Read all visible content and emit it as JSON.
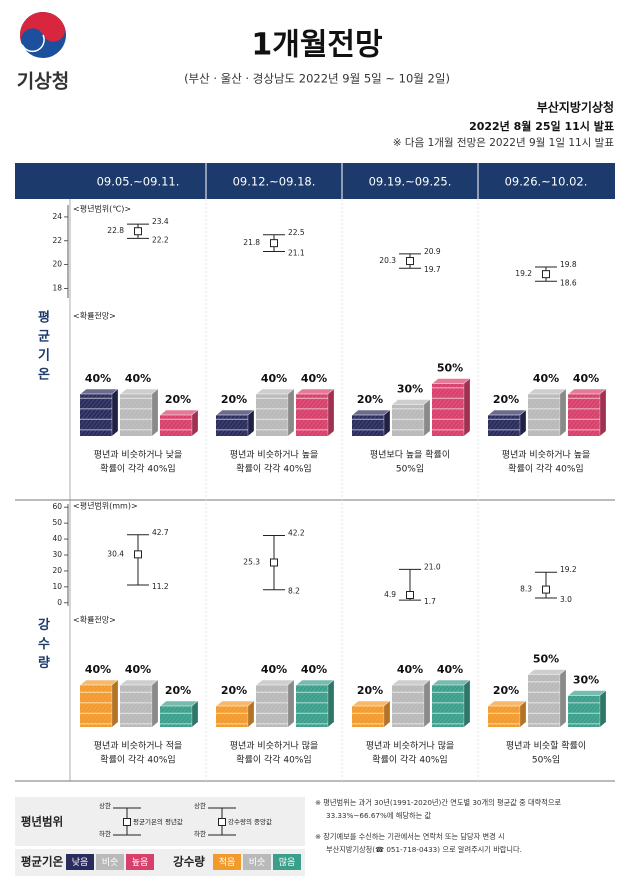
{
  "header": {
    "logo_text": "기상청",
    "title": "1개월전망",
    "subtitle": "(부산 · 울산 · 경상남도 2022년 9월 5일 ~ 10월 2일)",
    "office": "부산지방기상청",
    "issued": "2022년 8월 25일 11시 발표",
    "next": "※ 다음 1개월 전망은 2022년 9월 1일 11시 발표"
  },
  "periods": [
    "09.05.~09.11.",
    "09.12.~09.18.",
    "09.19.~09.25.",
    "09.26.~10.02."
  ],
  "chart_data": [
    {
      "type": "range",
      "name": "평균기온",
      "range_title": "<평년범위(℃)>",
      "prob_title": "<확률전망>",
      "ylim": [
        17.2,
        25
      ],
      "yticks": [
        18,
        20,
        22,
        24
      ],
      "colors": [
        "#2a2c5e",
        "#b9b9b9",
        "#d8406c"
      ],
      "weeks": [
        {
          "mean": 22.8,
          "upper": 23.4,
          "lower": 22.2,
          "probabilities": [
            40,
            40,
            20
          ],
          "probability_labels": [
            "40%",
            "40%",
            "20%"
          ],
          "text": [
            "평년과 비슷하거나 낮을",
            "확률이 각각 40%임"
          ]
        },
        {
          "mean": 21.8,
          "upper": 22.5,
          "lower": 21.1,
          "probabilities": [
            20,
            40,
            40
          ],
          "probability_labels": [
            "20%",
            "40%",
            "40%"
          ],
          "text": [
            "평년과 비슷하거나 높을",
            "확률이 각각 40%임"
          ]
        },
        {
          "mean": 20.3,
          "upper": 20.9,
          "lower": 19.7,
          "probabilities": [
            20,
            30,
            50
          ],
          "probability_labels": [
            "20%",
            "30%",
            "50%"
          ],
          "text": [
            "평년보다 높을 확률이",
            "50%임"
          ]
        },
        {
          "mean": 19.2,
          "upper": 19.8,
          "lower": 18.6,
          "probabilities": [
            20,
            40,
            40
          ],
          "probability_labels": [
            "20%",
            "40%",
            "40%"
          ],
          "text": [
            "평년과 비슷하거나 높을",
            "확률이 각각 40%임"
          ]
        }
      ]
    },
    {
      "type": "range",
      "name": "강수량",
      "range_title": "<평년범위(mm)>",
      "prob_title": "<확률전망>",
      "ylim": [
        -2,
        62
      ],
      "yticks": [
        0,
        10,
        20,
        30,
        40,
        50,
        60
      ],
      "colors": [
        "#f39a2c",
        "#b9b9b9",
        "#3a9f8b"
      ],
      "weeks": [
        {
          "mean": 30.4,
          "upper": 42.7,
          "lower": 11.2,
          "probabilities": [
            40,
            40,
            20
          ],
          "probability_labels": [
            "40%",
            "40%",
            "20%"
          ],
          "text": [
            "평년과 비슷하거나 적을",
            "확률이 각각 40%임"
          ]
        },
        {
          "mean": 25.3,
          "upper": 42.2,
          "lower": 8.2,
          "probabilities": [
            20,
            40,
            40
          ],
          "probability_labels": [
            "20%",
            "40%",
            "40%"
          ],
          "text": [
            "평년과 비슷하거나 많을",
            "확률이 각각 40%임"
          ]
        },
        {
          "mean": 4.9,
          "upper": 21.0,
          "upper_label": "21.0",
          "lower": 1.7,
          "probabilities": [
            20,
            40,
            40
          ],
          "probability_labels": [
            "20%",
            "40%",
            "40%"
          ],
          "text": [
            "평년과 비슷하거나 많을",
            "확률이 각각 40%임"
          ]
        },
        {
          "mean": 8.3,
          "upper": 19.2,
          "lower": 3.0,
          "lower_label": "3.0",
          "probabilities": [
            20,
            50,
            30
          ],
          "probability_labels": [
            "20%",
            "50%",
            "30%"
          ],
          "text": [
            "평년과 비슷할 확률이",
            "50%임"
          ]
        }
      ]
    }
  ],
  "legend": {
    "title": "평년범위",
    "upper": "상한",
    "lower": "하한",
    "temp_mean": "평균기온의 평년값",
    "precip_median": "강수량의 중앙값",
    "temp": {
      "name": "평균기온",
      "categories": [
        "낮음",
        "비슷",
        "높음"
      ]
    },
    "precip": {
      "name": "강수량",
      "categories": [
        "적음",
        "비슷",
        "많음"
      ]
    }
  },
  "notes": [
    [
      "※ 평년범위는 과거 30년(1991-2020년)간 연도별 30개의 평균값 중 대략적으로",
      "33.33%~66.67%에 해당하는 값"
    ],
    [
      "※ 장기예보를 수신하는 기관에서는 연락처 또는 담당자 변경 시",
      "부산지방기상청(☎ 051-718-0433) 으로 알려주시기 바랍니다."
    ]
  ]
}
